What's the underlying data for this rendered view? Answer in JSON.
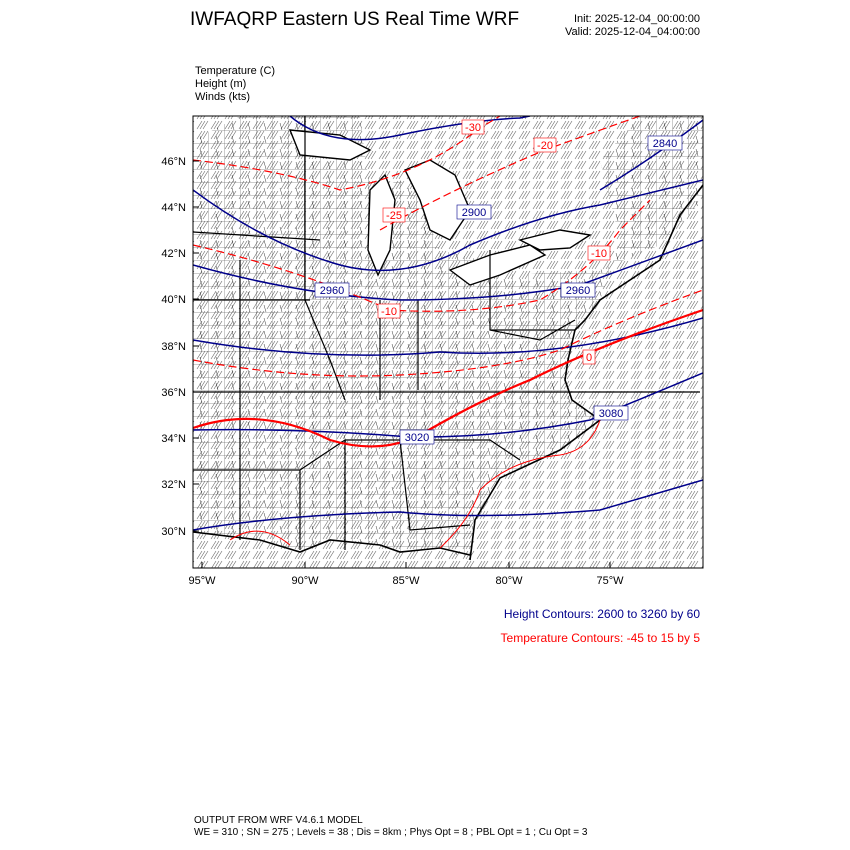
{
  "header": {
    "title": "IWFAQRP Eastern US Real Time WRF",
    "init": "Init: 2025-12-04_00:00:00",
    "valid": "Valid: 2025-12-04_04:00:00"
  },
  "fields": [
    "Temperature   (C)",
    "Height   (m)",
    "Winds   (kts)"
  ],
  "map": {
    "lat_labels": [
      "30°N",
      "32°N",
      "34°N",
      "36°N",
      "38°N",
      "40°N",
      "42°N",
      "44°N",
      "46°N"
    ],
    "lon_labels": [
      "95°W",
      "90°W",
      "85°W",
      "80°W",
      "75°W"
    ],
    "height_labels": [
      "2840",
      "2900",
      "2960",
      "2960",
      "3020",
      "3080"
    ],
    "temp_labels": [
      "-30",
      "-20",
      "-25",
      "-10",
      "-10",
      "0"
    ],
    "colors": {
      "height": "#00008b",
      "temperature": "#ff0000",
      "boundaries": "#000000"
    }
  },
  "legend": {
    "height": "Height Contours: 2600 to 3260 by 60",
    "temperature": "Temperature Contours: -45 to 15 by 5"
  },
  "footer": {
    "line1": "OUTPUT FROM WRF V4.6.1 MODEL",
    "line2": "WE = 310 ; SN = 275 ; Levels = 38 ; Dis = 8km ; Phys Opt = 8 ; PBL Opt = 1 ; Cu Opt = 3"
  }
}
